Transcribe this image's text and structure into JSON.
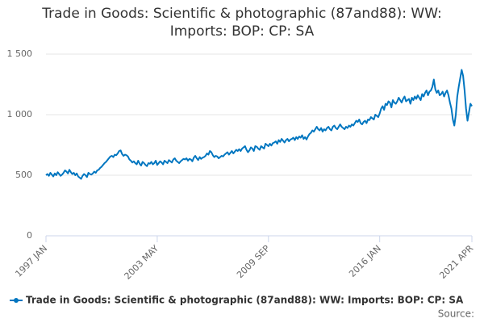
{
  "chart_data": {
    "type": "line",
    "title": "Trade in Goods: Scientific & photographic (87and88): WW: Imports: BOP: CP: SA",
    "categories": [
      "1997 JAN",
      null,
      null,
      null,
      null,
      null,
      null,
      null,
      null,
      null,
      null,
      null,
      null,
      null,
      null,
      null,
      null,
      null,
      null,
      null,
      null,
      null,
      null,
      null,
      null,
      null,
      null,
      null,
      null,
      null,
      null,
      null,
      null,
      null,
      null,
      null,
      null,
      null,
      null,
      null,
      null,
      null,
      null,
      null,
      null,
      null,
      null,
      null,
      null,
      null,
      null,
      null,
      null,
      null,
      null,
      null,
      null,
      null,
      null,
      null,
      null,
      null,
      null,
      null,
      null,
      null,
      null,
      null,
      null,
      null,
      null,
      null,
      null,
      null,
      null,
      null,
      "2003 MAY",
      null,
      null,
      null,
      null,
      null,
      null,
      null,
      null,
      null,
      null,
      null,
      null,
      null,
      null,
      null,
      null,
      null,
      null,
      null,
      null,
      null,
      null,
      null,
      null,
      null,
      null,
      null,
      null,
      null,
      null,
      null,
      null,
      null,
      null,
      null,
      null,
      null,
      null,
      null,
      null,
      null,
      null,
      null,
      null,
      null,
      null,
      null,
      null,
      null,
      null,
      null,
      null,
      null,
      null,
      null,
      null,
      null,
      null,
      null,
      null,
      null,
      null,
      null,
      null,
      null,
      null,
      null,
      null,
      null,
      null,
      null,
      null,
      null,
      null,
      null,
      "2009 SEP",
      null,
      null,
      null,
      null,
      null,
      null,
      null,
      null,
      null,
      null,
      null,
      null,
      null,
      null,
      null,
      null,
      null,
      null,
      null,
      null,
      null,
      null,
      null,
      null,
      null,
      null,
      null,
      null,
      null,
      null,
      null,
      null,
      null,
      null,
      null,
      null,
      null,
      null,
      null,
      null,
      null,
      null,
      null,
      null,
      null,
      null,
      null,
      null,
      null,
      null,
      null,
      null,
      null,
      null,
      null,
      null,
      null,
      null,
      null,
      null,
      null,
      null,
      null,
      null,
      null,
      null,
      null,
      null,
      null,
      null,
      null,
      null,
      null,
      null,
      null,
      "2016 JAN",
      null,
      null,
      null,
      null,
      null,
      null,
      null,
      null,
      null,
      null,
      null,
      null,
      null,
      null,
      null,
      null,
      null,
      null,
      null,
      null,
      null,
      null,
      null,
      null,
      null,
      null,
      null,
      null,
      null,
      null,
      null,
      null,
      null,
      null,
      null,
      null,
      null,
      null,
      null,
      null,
      null,
      null,
      null,
      null,
      null,
      null,
      null,
      null,
      null,
      null,
      null,
      null,
      null,
      null,
      null,
      null,
      null,
      null,
      null,
      null,
      null,
      null,
      "2021 APR"
    ],
    "series": [
      {
        "name": "Trade in Goods: Scientific & photographic (87and88): WW: Imports: BOP: CP: SA",
        "color": "#0076c0",
        "values": [
          500,
          510,
          495,
          520,
          505,
          490,
          515,
          500,
          525,
          510,
          495,
          505,
          520,
          540,
          530,
          515,
          545,
          525,
          510,
          520,
          500,
          515,
          490,
          480,
          470,
          495,
          510,
          500,
          485,
          520,
          510,
          505,
          515,
          530,
          520,
          540,
          545,
          560,
          570,
          585,
          600,
          610,
          625,
          640,
          655,
          660,
          650,
          670,
          665,
          680,
          700,
          705,
          675,
          660,
          670,
          665,
          655,
          630,
          620,
          605,
          615,
          600,
          590,
          620,
          595,
          580,
          610,
          600,
          585,
          575,
          600,
          595,
          610,
          590,
          600,
          620,
          585,
          600,
          615,
          605,
          590,
          620,
          610,
          600,
          625,
          615,
          605,
          630,
          640,
          620,
          610,
          600,
          615,
          625,
          635,
          630,
          640,
          620,
          635,
          630,
          615,
          645,
          660,
          640,
          625,
          650,
          635,
          645,
          650,
          660,
          680,
          670,
          700,
          690,
          665,
          650,
          660,
          655,
          640,
          650,
          660,
          655,
          670,
          680,
          690,
          670,
          685,
          700,
          680,
          695,
          710,
          700,
          715,
          700,
          720,
          730,
          740,
          710,
          690,
          705,
          730,
          720,
          700,
          740,
          735,
          720,
          710,
          740,
          730,
          720,
          760,
          750,
          740,
          760,
          745,
          765,
          770,
          780,
          760,
          790,
          775,
          800,
          785,
          770,
          790,
          800,
          780,
          795,
          800,
          810,
          790,
          815,
          800,
          820,
          810,
          830,
          800,
          815,
          795,
          820,
          840,
          850,
          870,
          860,
          880,
          900,
          880,
          870,
          890,
          860,
          880,
          870,
          890,
          900,
          880,
          870,
          900,
          910,
          890,
          880,
          900,
          920,
          900,
          890,
          880,
          900,
          890,
          910,
          900,
          920,
          910,
          930,
          950,
          940,
          960,
          930,
          920,
          940,
          950,
          930,
          960,
          955,
          980,
          970,
          960,
          1000,
          990,
          980,
          1010,
          1050,
          1070,
          1040,
          1090,
          1080,
          1110,
          1100,
          1060,
          1120,
          1100,
          1090,
          1110,
          1140,
          1120,
          1100,
          1130,
          1150,
          1110,
          1120,
          1130,
          1090,
          1140,
          1120,
          1150,
          1130,
          1160,
          1140,
          1120,
          1170,
          1150,
          1180,
          1200,
          1160,
          1190,
          1200,
          1230,
          1290,
          1210,
          1180,
          1200,
          1160,
          1170,
          1190,
          1150,
          1180,
          1200,
          1160,
          1100,
          1050,
          960,
          910,
          1000,
          1150,
          1230,
          1300,
          1370,
          1320,
          1200,
          1050,
          950,
          1020,
          1090,
          1070
        ]
      }
    ],
    "ylim": [
      0,
      1500
    ],
    "yticks": [
      0,
      500,
      {
        "value": 1000,
        "label": "1 000"
      },
      {
        "value": 1500,
        "label": "1 500"
      }
    ],
    "grid": true,
    "source_label": "Source:"
  }
}
